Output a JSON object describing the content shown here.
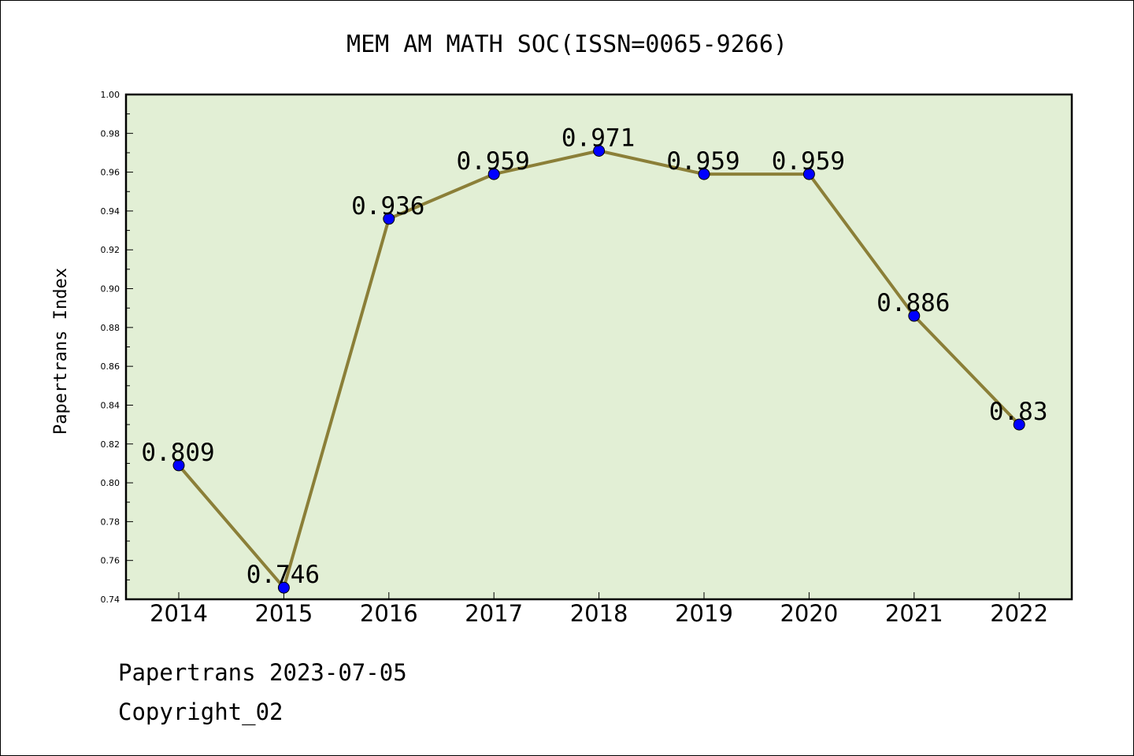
{
  "chart_data": {
    "type": "line",
    "title": "MEM AM MATH SOC(ISSN=0065-9266)",
    "xlabel": "",
    "ylabel": "Papertrans Index",
    "categories": [
      "2014",
      "2015",
      "2016",
      "2017",
      "2018",
      "2019",
      "2020",
      "2021",
      "2022"
    ],
    "series": [
      {
        "values": [
          0.809,
          0.746,
          0.936,
          0.959,
          0.971,
          0.959,
          0.959,
          0.886,
          0.83
        ],
        "labels": [
          "0.809",
          "0.746",
          "0.936",
          "0.959",
          "0.971",
          "0.959",
          "0.959",
          "0.886",
          "0.83"
        ]
      }
    ],
    "ylim": [
      0.74,
      1.0
    ],
    "yticks": [
      "0.74",
      "0.76",
      "0.78",
      "0.80",
      "0.82",
      "0.84",
      "0.86",
      "0.88",
      "0.90",
      "0.92",
      "0.94",
      "0.96",
      "0.98",
      "1.00"
    ],
    "grid": false,
    "legend": "none"
  },
  "colors": {
    "plot_background": "#e2efd5",
    "line": "#8b7f38",
    "marker": "#0000ff",
    "axis": "#000000"
  },
  "footer": {
    "line1": "Papertrans 2023-07-05",
    "line2": "Copyright_02"
  }
}
